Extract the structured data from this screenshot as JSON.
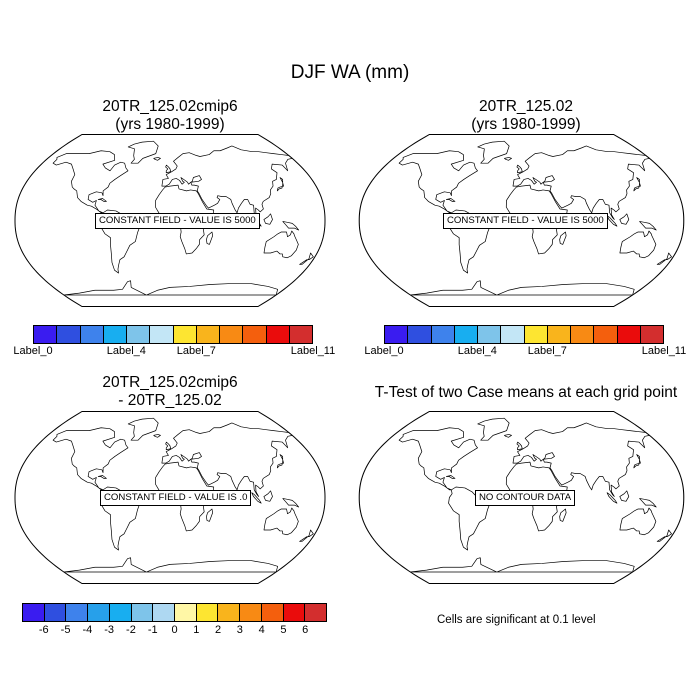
{
  "figure": {
    "title": "DJF WA (mm)"
  },
  "panels": [
    {
      "title_line1": "20TR_125.02cmip6",
      "title_line2": "(yrs 1980-1999)",
      "field_text": "CONSTANT FIELD - VALUE IS 5000"
    },
    {
      "title_line1": "20TR_125.02",
      "title_line2": "(yrs 1980-1999)",
      "field_text": "CONSTANT FIELD - VALUE IS 5000"
    },
    {
      "title_line1": "20TR_125.02cmip6",
      "title_line2": "- 20TR_125.02",
      "field_text": "CONSTANT FIELD - VALUE IS .0"
    },
    {
      "title_line1": "T-Test of two Case means at each grid point",
      "title_line2": "",
      "field_text": "NO CONTOUR DATA"
    }
  ],
  "colorbar_case": {
    "colors": [
      "#3a1cf0",
      "#2f4fe0",
      "#3e82ec",
      "#18aef0",
      "#7ec4ea",
      "#c3e6f6",
      "#fde531",
      "#f9b41c",
      "#f88a14",
      "#f45f0d",
      "#ea0c0c",
      "#d32e2e"
    ],
    "labels": [
      "Label_0",
      "Label_4",
      "Label_7",
      "Label_11"
    ]
  },
  "colorbar_diff": {
    "colors": [
      "#3a1cf0",
      "#2f4fe0",
      "#3e82ec",
      "#27a0ea",
      "#18aef0",
      "#7ec4ea",
      "#aed8f2",
      "#fff7a6",
      "#fde531",
      "#f9b41c",
      "#f88a14",
      "#f45f0d",
      "#ea0c0c",
      "#d32e2e"
    ],
    "labels": [
      "-6",
      "-5",
      "-4",
      "-3",
      "-2",
      "-1",
      "0",
      "1",
      "2",
      "3",
      "4",
      "5",
      "6"
    ]
  },
  "significance_note": "Cells are significant at 0.1 level"
}
